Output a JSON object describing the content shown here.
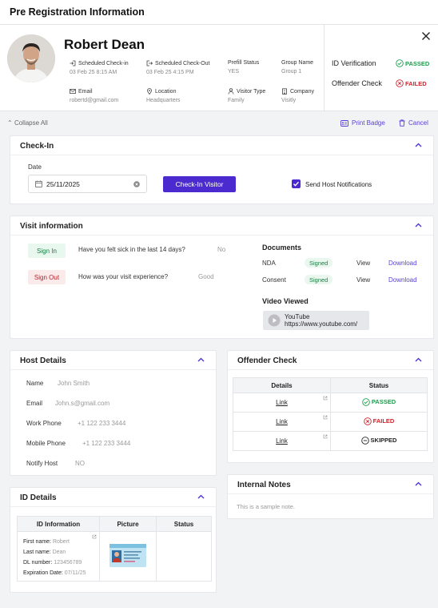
{
  "header": {
    "title": "Pre Registration Information"
  },
  "profile": {
    "name": "Robert Dean",
    "fields": [
      {
        "label": "Scheduled Check-in",
        "value": "03 Feb 25 8:15 AM",
        "icon": "login-icon"
      },
      {
        "label": "Scheduled Check-Out",
        "value": "03 Feb 25 4:15 PM",
        "icon": "logout-icon"
      },
      {
        "label": "Prefill Status",
        "value": "YES"
      },
      {
        "label": "Group Name",
        "value": "Group 1"
      },
      {
        "label": "Email",
        "value": "robertd@gmail.com",
        "icon": "mail-icon"
      },
      {
        "label": "Location",
        "value": "Headquarters",
        "icon": "location-pin-icon"
      },
      {
        "label": "Visitor Type",
        "value": "Family",
        "icon": "person-icon"
      },
      {
        "label": "Company",
        "value": "Visitly",
        "icon": "building-icon"
      }
    ],
    "id_verification": {
      "label": "ID Verification",
      "status": "PASSED"
    },
    "offender_check": {
      "label": "Offender Check",
      "status": "FAILED"
    }
  },
  "toolbar": {
    "collapse_all": "Collapse All",
    "print_badge": "Print Badge",
    "cancel": "Cancel"
  },
  "checkin": {
    "title": "Check-In",
    "date_label": "Date",
    "date_value": "25/11/2025",
    "button": "Check-In Visitor",
    "notify_label": "Send Host Notifications",
    "notify_checked": true
  },
  "visit": {
    "title": "Visit information",
    "sign_in": {
      "label": "Sign In",
      "question": "Have you felt sick in the last 14 days?",
      "answer": "No"
    },
    "sign_out": {
      "label": "Sign Out",
      "question": "How was your visit experience?",
      "answer": "Good"
    },
    "documents_title": "Documents",
    "documents": [
      {
        "name": "NDA",
        "status": "Signed",
        "view": "View",
        "download": "Download"
      },
      {
        "name": "Consent",
        "status": "Signed",
        "view": "View",
        "download": "Download"
      }
    ],
    "video_title": "Video Viewed",
    "video": {
      "title": "YouTube",
      "url": "https://www.youtube.com/"
    }
  },
  "host": {
    "title": "Host Details",
    "rows": [
      {
        "key": "Name",
        "value": "John Smith"
      },
      {
        "key": "Email",
        "value": "John.s@gmail.com"
      },
      {
        "key": "Work Phone",
        "value": "+1 122 233 3444"
      },
      {
        "key": "Mobile Phone",
        "value": "+1 122 233 3444"
      },
      {
        "key": "Notify Host",
        "value": "NO"
      }
    ]
  },
  "offender": {
    "title": "Offender Check",
    "headers": [
      "Details",
      "Status"
    ],
    "rows": [
      {
        "link": "Link",
        "status": "PASSED"
      },
      {
        "link": "Link",
        "status": "FAILED"
      },
      {
        "link": "Link",
        "status": "SKIPPED"
      }
    ]
  },
  "notes": {
    "title": "Internal Notes",
    "text": "This is a sample note."
  },
  "id_details": {
    "title": "ID Details",
    "headers": [
      "ID Information",
      "Picture",
      "Status"
    ],
    "info": [
      {
        "key": "First name:",
        "value": "Robert"
      },
      {
        "key": "Last name:",
        "value": "Dean"
      },
      {
        "key": "DL number:",
        "value": "123456789"
      },
      {
        "key": "Expiration Date:",
        "value": "07/11/25"
      }
    ]
  },
  "colors": {
    "accent": "#4b2bd0",
    "passed": "#1a9e4b",
    "failed": "#d0212c"
  }
}
